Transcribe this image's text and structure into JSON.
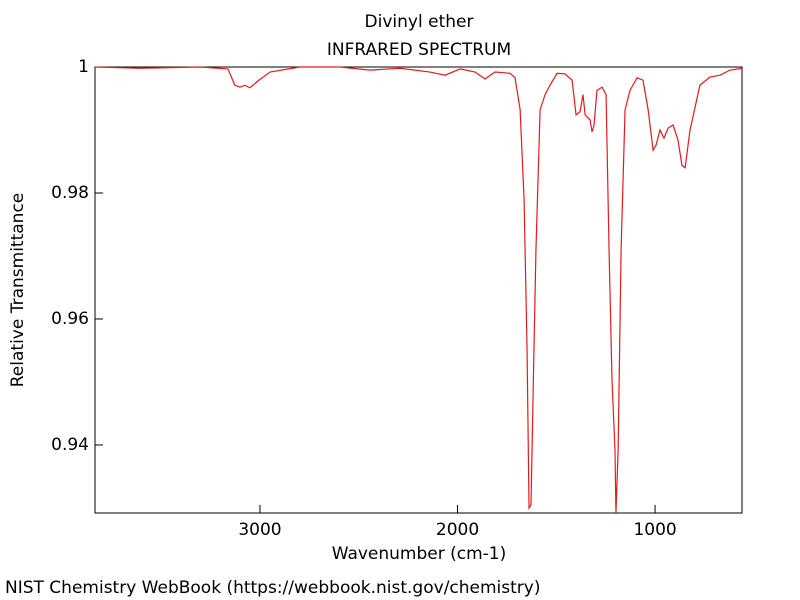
{
  "chart_data": {
    "type": "line",
    "title": "Divinyl ether",
    "subtitle": "INFRARED SPECTRUM",
    "x_label": "Wavenumber (cm-1)",
    "y_label": "Relative Transmittance",
    "footer": "NIST Chemistry WebBook (https://webbook.nist.gov/chemistry)",
    "color": "#e31a1c",
    "xlim": [
      3835,
      560
    ],
    "ylim": [
      0.9292,
      1
    ],
    "xticks": [
      3000,
      2000,
      1000
    ],
    "yticks": [
      1,
      0.98,
      0.96,
      0.94
    ],
    "x": [
      3835,
      3607,
      3304,
      3162,
      3127,
      3101,
      3076,
      3051,
      3010,
      2949,
      2797,
      2595,
      2443,
      2291,
      2139,
      2063,
      1987,
      1911,
      1861,
      1810,
      1734,
      1709,
      1683,
      1663,
      1648,
      1638,
      1628,
      1618,
      1603,
      1582,
      1557,
      1532,
      1496,
      1456,
      1420,
      1400,
      1380,
      1365,
      1354,
      1329,
      1319,
      1309,
      1294,
      1268,
      1248,
      1233,
      1218,
      1203,
      1198,
      1187,
      1172,
      1152,
      1127,
      1091,
      1061,
      1035,
      1010,
      995,
      975,
      955,
      934,
      909,
      884,
      864,
      848,
      823,
      773,
      722,
      671,
      621,
      560
    ],
    "values": [
      1.0,
      0.9998,
      1.0,
      0.9997,
      0.9971,
      0.9968,
      0.9971,
      0.9967,
      0.9978,
      0.9992,
      1.0,
      1.0,
      0.9995,
      0.9998,
      0.9992,
      0.9987,
      0.9997,
      0.9992,
      0.9981,
      0.9992,
      0.999,
      0.9983,
      0.9932,
      0.9789,
      0.9551,
      0.93,
      0.9305,
      0.9471,
      0.971,
      0.9932,
      0.9956,
      0.9971,
      0.999,
      0.9989,
      0.9979,
      0.9924,
      0.9929,
      0.9956,
      0.9924,
      0.9916,
      0.9897,
      0.9908,
      0.9963,
      0.9968,
      0.9956,
      0.971,
      0.9503,
      0.9392,
      0.9292,
      0.9392,
      0.971,
      0.9932,
      0.9963,
      0.9983,
      0.9979,
      0.9932,
      0.9868,
      0.9876,
      0.99,
      0.9887,
      0.9903,
      0.9908,
      0.9884,
      0.9844,
      0.984,
      0.99,
      0.9971,
      0.9984,
      0.9987,
      0.9995,
      0.9998
    ]
  }
}
